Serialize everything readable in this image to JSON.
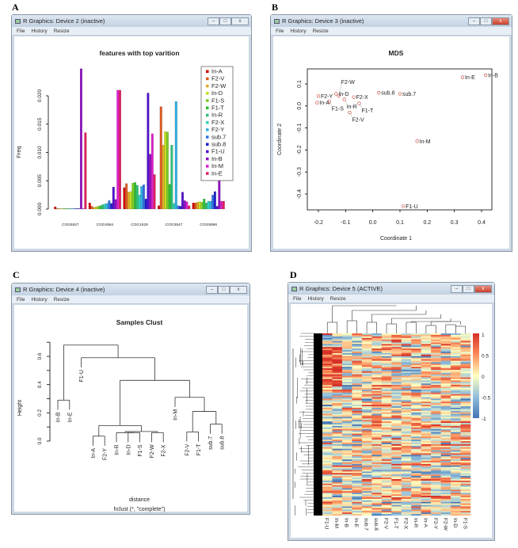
{
  "panels": [
    "A",
    "B",
    "C",
    "D"
  ],
  "menu": [
    "File",
    "History",
    "Resize"
  ],
  "windows": [
    {
      "title": "R Graphics: Device 2 (inactive)"
    },
    {
      "title": "R Graphics: Device 3 (inactive)"
    },
    {
      "title": "R Graphics: Device 4 (inactive)"
    },
    {
      "title": "R Graphics: Device 5 (ACTIVE)"
    }
  ],
  "window_buttons": {
    "minimize": "–",
    "maximize": "□",
    "close": "x"
  },
  "chart_data": [
    {
      "type": "bar",
      "title": "features with top varition",
      "ylabel": "Freq",
      "xlabel": "",
      "ylim": [
        0,
        0.025
      ],
      "yticks": [
        "0.000",
        "0.005",
        "0.010",
        "0.015",
        "0.020"
      ],
      "categories": [
        "COG6527",
        "COG4584",
        "COG1529",
        "COG3547",
        "COG5896"
      ],
      "legend_position": "top-right",
      "series": [
        {
          "name": "In-A",
          "color": "#d40000",
          "values": [
            0.0004,
            0.0011,
            0.0038,
            0.0006,
            0.0011
          ]
        },
        {
          "name": "F2-V",
          "color": "#dd5a1e",
          "values": [
            0.0001,
            0.0005,
            0.0045,
            0.0181,
            0.0011
          ]
        },
        {
          "name": "F2-W",
          "color": "#e0aa22",
          "values": [
            0.0001,
            0.0003,
            0.003,
            0.0113,
            0.0012
          ]
        },
        {
          "name": "In-D",
          "color": "#c6dc1e",
          "values": [
            0.0001,
            0.0004,
            0.0031,
            0.0137,
            0.0013
          ]
        },
        {
          "name": "F1-S",
          "color": "#7ccc24",
          "values": [
            0.0001,
            0.0005,
            0.0046,
            0.0136,
            0.0012
          ]
        },
        {
          "name": "F1-T",
          "color": "#2fbf30",
          "values": [
            0.0001,
            0.0006,
            0.0047,
            0.0044,
            0.0018
          ]
        },
        {
          "name": "In-R",
          "color": "#2ebf78",
          "values": [
            0.0001,
            0.0008,
            0.0042,
            0.0113,
            0.0011
          ]
        },
        {
          "name": "F2-X",
          "color": "#2fcfbf",
          "values": [
            0.0001,
            0.0009,
            0.0025,
            0.001,
            0.0014
          ]
        },
        {
          "name": "F2-Y",
          "color": "#2eaee0",
          "values": [
            0.0001,
            0.001,
            0.004,
            0.019,
            0.0014
          ]
        },
        {
          "name": "sub.7",
          "color": "#2f6fe0",
          "values": [
            0.0001,
            0.0015,
            0.0043,
            0.0006,
            0.0025
          ]
        },
        {
          "name": "sub.8",
          "color": "#1e1ecf",
          "values": [
            0.0001,
            0.001,
            0.0018,
            0.0005,
            0.0031
          ]
        },
        {
          "name": "F1-U",
          "color": "#5010cf",
          "values": [
            0.0001,
            0.0039,
            0.0205,
            0.003,
            0.0005
          ]
        },
        {
          "name": "In-B",
          "color": "#8e10c0",
          "values": [
            0.0248,
            0.0017,
            0.0097,
            0.0015,
            0.0137
          ]
        },
        {
          "name": "In-M",
          "color": "#df1fcf",
          "values": [
            0.0001,
            0.021,
            0.0133,
            0.0013,
            0.0014
          ]
        },
        {
          "name": "In-E",
          "color": "#df1f5e",
          "values": [
            0.0135,
            0.021,
            0.0061,
            0.0006,
            0.0014
          ]
        }
      ]
    },
    {
      "type": "scatter",
      "title": "MDS",
      "xlabel": "Coordinate 1",
      "ylabel": "Coordinate 2",
      "xlim": [
        -0.22,
        0.44
      ],
      "ylim": [
        -0.47,
        0.16
      ],
      "xticks": [
        "-0.2",
        "-0.1",
        "0.0",
        "0.1",
        "0.2",
        "0.3",
        "0.4"
      ],
      "yticks": [
        "-0.4",
        "-0.3",
        "-0.2",
        "-0.1",
        "0.0",
        "0.1"
      ],
      "point_color": "#c0392b",
      "points": [
        {
          "label": "In-E",
          "x": 0.33,
          "y": 0.13
        },
        {
          "label": "In-B",
          "x": 0.415,
          "y": 0.14
        },
        {
          "label": "F2-Y",
          "x": -0.2,
          "y": 0.045
        },
        {
          "label": "In-A",
          "x": -0.205,
          "y": 0.015
        },
        {
          "label": "In-D",
          "x": -0.135,
          "y": 0.055
        },
        {
          "label": "F1-S",
          "x": -0.16,
          "y": 0.02
        },
        {
          "label": "F2-W",
          "x": -0.125,
          "y": 0.045
        },
        {
          "label": "In-R",
          "x": -0.105,
          "y": 0.03
        },
        {
          "label": "F2-X",
          "x": -0.07,
          "y": 0.04
        },
        {
          "label": "F1-T",
          "x": -0.05,
          "y": 0.012
        },
        {
          "label": "F2-V",
          "x": -0.085,
          "y": -0.03
        },
        {
          "label": "sub.8",
          "x": 0.022,
          "y": 0.06
        },
        {
          "label": "sub.7",
          "x": 0.1,
          "y": 0.055
        },
        {
          "label": "In-M",
          "x": 0.163,
          "y": -0.16
        },
        {
          "label": "F1-U",
          "x": 0.112,
          "y": -0.455
        }
      ]
    },
    {
      "type": "dendrogram",
      "title": "Samples Clust",
      "ylabel": "Height",
      "xlabel": "distance",
      "sub": "hclust (*, \"complete\")",
      "ylim": [
        0,
        0.7
      ],
      "yticks": [
        "0.0",
        "0.2",
        "0.4",
        "0.6"
      ],
      "tree": {
        "h": 0.68,
        "c": [
          {
            "h": 0.29,
            "c": [
              "In-B",
              "In-E"
            ]
          },
          {
            "h": 0.59,
            "c": [
              "F1-U",
              {
                "h": 0.43,
                "c": [
                  {
                    "h": 0.11,
                    "c": [
                      {
                        "h": 0.035,
                        "c": [
                          "In-A",
                          "F2-Y"
                        ]
                      },
                      {
                        "h": 0.068,
                        "c": [
                          {
                            "h": 0.06,
                            "c": [
                              "In-R",
                              {
                                "h": 0.06,
                                "c": [
                                  "In-D",
                                  "F1-S"
                                ]
                              }
                            ]
                          },
                          {
                            "h": 0.06,
                            "c": [
                              "F2-W",
                              "F2-X"
                            ]
                          }
                        ]
                      }
                    ]
                  },
                  {
                    "h": 0.31,
                    "c": [
                      "In-M",
                      {
                        "h": 0.21,
                        "c": [
                          {
                            "h": 0.065,
                            "c": [
                              "F2-V",
                              "F1-T"
                            ]
                          },
                          {
                            "h": 0.12,
                            "c": [
                              "sub.7",
                              "sub.8"
                            ]
                          }
                        ]
                      }
                    ]
                  }
                ]
              }
            ]
          }
        ]
      }
    },
    {
      "type": "heatmap",
      "columns": [
        "F1-U",
        "In-M",
        "In-B",
        "In-E",
        "sub.7",
        "sub.8",
        "F2-V",
        "F1-T",
        "F2-X",
        "In-R",
        "In-A",
        "F2-Y",
        "F2-W",
        "In-D",
        "F1-S"
      ],
      "row_count": 120,
      "scale": {
        "min": -1,
        "max": 1,
        "labels": [
          "1",
          "0.5",
          "0",
          "-0.5",
          "-1"
        ],
        "colors": [
          "#4575b4",
          "#91bfdb",
          "#ffffbf",
          "#fc8d59",
          "#d73027"
        ]
      }
    }
  ]
}
